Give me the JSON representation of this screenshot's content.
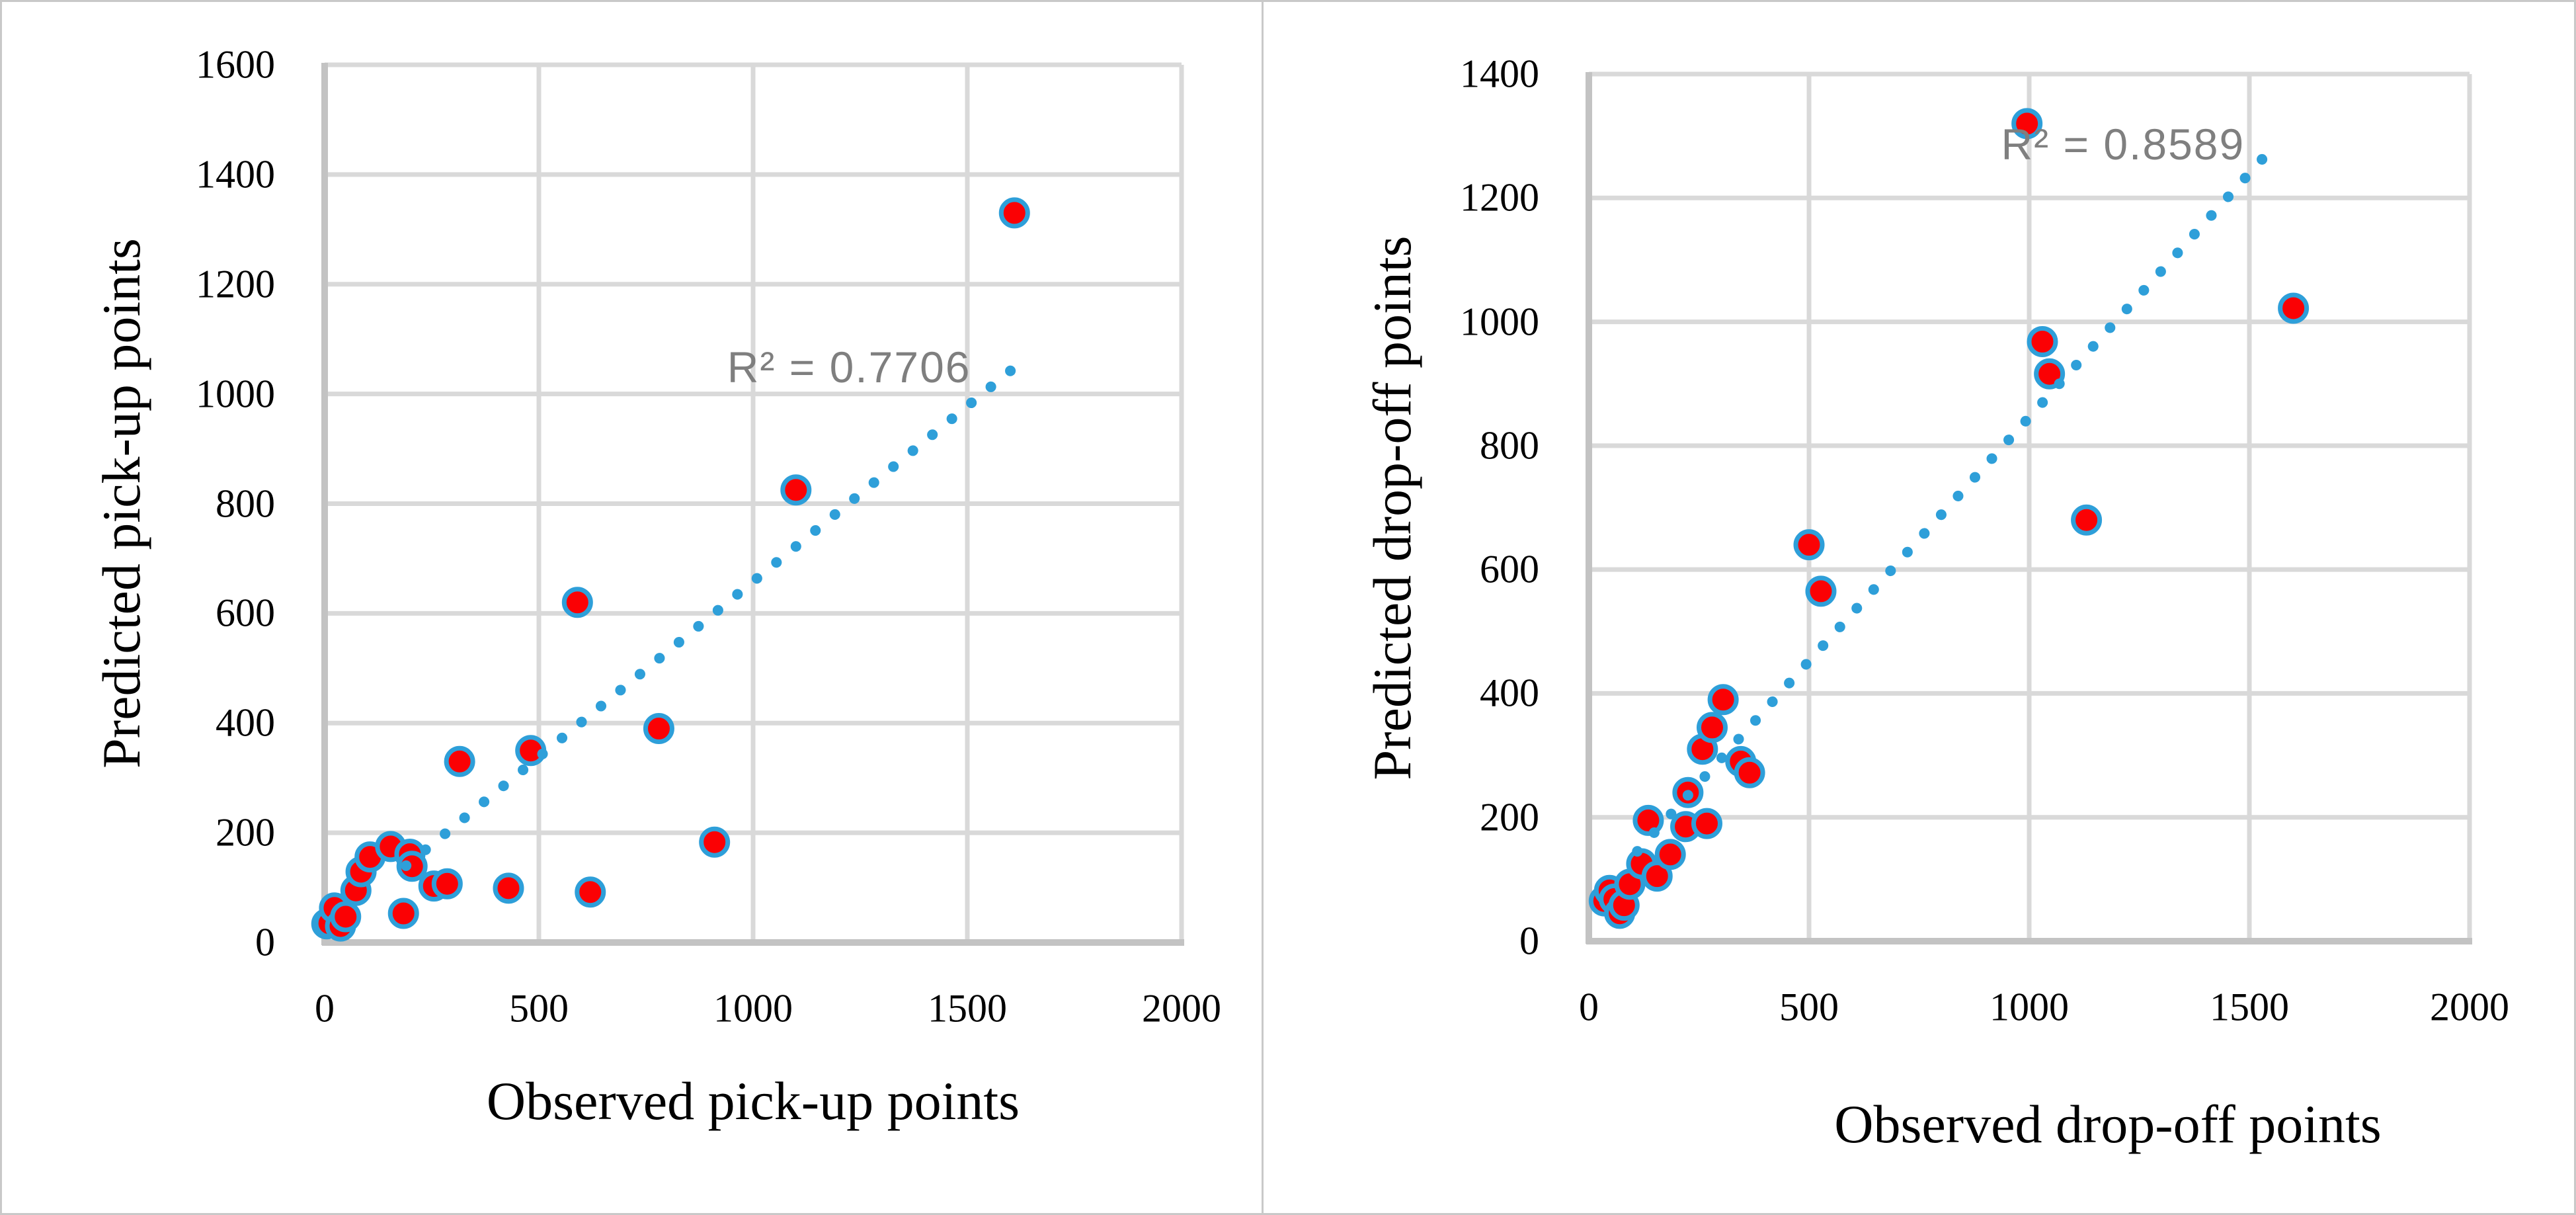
{
  "figure": {
    "panel_count": 2
  },
  "colors": {
    "background": "#ffffff",
    "border": "#c9c9c9",
    "gridline": "#d9d9d9",
    "axis_line": "#c3c3c3",
    "marker_fill": "#fb0104",
    "marker_ring": "#2e9fd9",
    "trendline": "#2e9fd9",
    "r2_text": "#7f7f7f",
    "tick_text": "#000000"
  },
  "chart_data": [
    {
      "type": "scatter",
      "xlabel": "Observed pick-up points",
      "ylabel": "Predicted pick-up points",
      "r2_label": "R² = 0.7706",
      "r2_pos": {
        "x": 1224,
        "y": 1049
      },
      "xlim": [
        0,
        2000
      ],
      "ylim": [
        0,
        1600
      ],
      "xticks": [
        0,
        500,
        1000,
        1500,
        2000
      ],
      "yticks": [
        0,
        200,
        400,
        600,
        800,
        1000,
        1200,
        1400,
        1600
      ],
      "grid": true,
      "legend": "none",
      "trendline": {
        "style": "dotted",
        "x1": 190,
        "y1": 140,
        "x2": 1605,
        "y2": 1045
      },
      "points": [
        [
          5,
          34
        ],
        [
          11,
          35
        ],
        [
          23,
          63
        ],
        [
          37,
          30
        ],
        [
          49,
          47
        ],
        [
          73,
          95
        ],
        [
          85,
          129
        ],
        [
          106,
          156
        ],
        [
          154,
          175
        ],
        [
          184,
          53
        ],
        [
          199,
          161
        ],
        [
          204,
          139
        ],
        [
          255,
          103
        ],
        [
          286,
          107
        ],
        [
          315,
          330
        ],
        [
          429,
          99
        ],
        [
          481,
          350
        ],
        [
          590,
          620
        ],
        [
          620,
          92
        ],
        [
          780,
          390
        ],
        [
          910,
          183
        ],
        [
          1100,
          825
        ],
        [
          1610,
          1330
        ]
      ]
    },
    {
      "type": "scatter",
      "xlabel": "Observed drop-off  points",
      "ylabel": "Predicted drop-off points",
      "r2_label": "R² = 0.8589",
      "r2_pos": {
        "x": 1213,
        "y": 1287
      },
      "xlim": [
        0,
        2000
      ],
      "ylim": [
        0,
        1400
      ],
      "xticks": [
        0,
        500,
        1000,
        1500,
        2000
      ],
      "yticks": [
        0,
        200,
        400,
        600,
        800,
        1000,
        1200,
        1400
      ],
      "grid": true,
      "legend": "none",
      "trendline": {
        "style": "dotted",
        "x1": 110,
        "y1": 145,
        "x2": 1560,
        "y2": 1287
      },
      "points": [
        [
          35,
          65
        ],
        [
          47,
          82
        ],
        [
          58,
          68
        ],
        [
          70,
          45
        ],
        [
          80,
          58
        ],
        [
          93,
          92
        ],
        [
          120,
          125
        ],
        [
          135,
          195
        ],
        [
          155,
          105
        ],
        [
          185,
          140
        ],
        [
          220,
          185
        ],
        [
          225,
          240
        ],
        [
          258,
          310
        ],
        [
          268,
          190
        ],
        [
          280,
          345
        ],
        [
          305,
          390
        ],
        [
          345,
          290
        ],
        [
          365,
          272
        ],
        [
          500,
          640
        ],
        [
          527,
          565
        ],
        [
          995,
          1320
        ],
        [
          1030,
          968
        ],
        [
          1046,
          916
        ],
        [
          1130,
          680
        ],
        [
          1600,
          1022
        ]
      ]
    }
  ]
}
